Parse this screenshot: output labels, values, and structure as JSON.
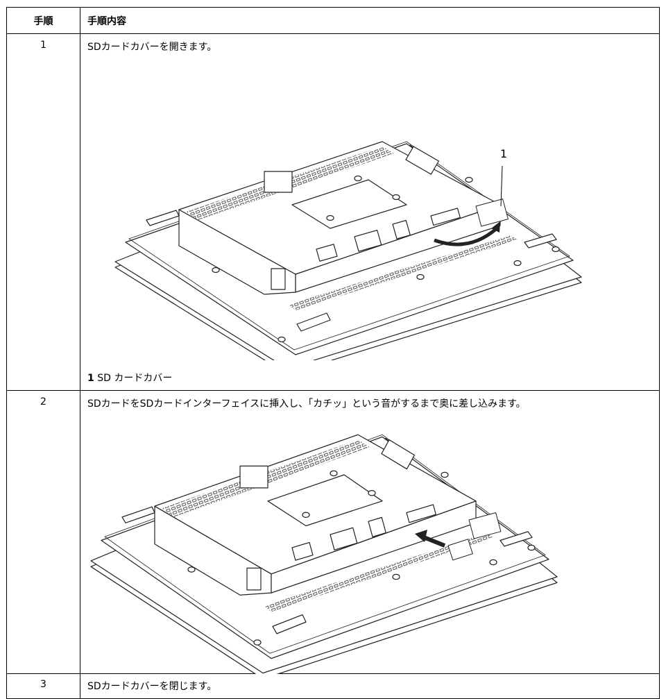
{
  "table": {
    "header": [
      "手順",
      "手順内容"
    ],
    "rows": [
      {
        "step": "1",
        "text": "SDカードカバーを開きます。",
        "callout": "1",
        "caption": {
          "number": "1",
          "text": "SD カードカバー"
        }
      },
      {
        "step": "2",
        "text": "SDカードをSDカードインターフェイスに挿入し、「カチッ」という音がするまで奥に差し込みます。"
      },
      {
        "step": "3",
        "text": "SDカードカバーを閉じます。"
      }
    ]
  }
}
